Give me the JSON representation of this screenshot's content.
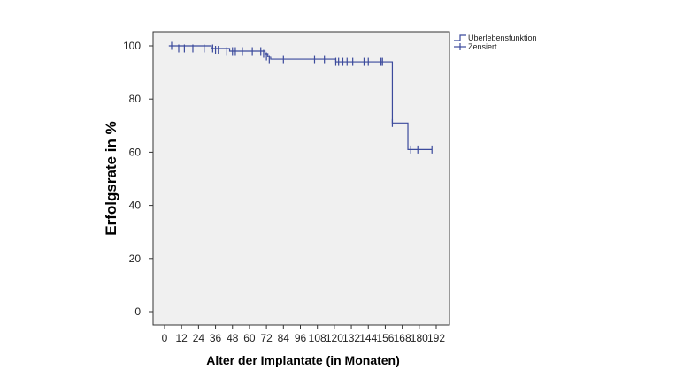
{
  "chart_data": {
    "type": "line",
    "subtype": "kaplan-meier",
    "title": "",
    "xlabel": "Alter der Implantate (in Monaten)",
    "ylabel": "Erfolgsrate in %",
    "xlim": [
      0,
      192
    ],
    "ylim": [
      0,
      100
    ],
    "xticks": [
      0,
      12,
      24,
      36,
      48,
      60,
      72,
      84,
      96,
      108,
      120,
      132,
      144,
      156,
      168,
      180,
      192
    ],
    "yticks": [
      0,
      20,
      40,
      60,
      80,
      100
    ],
    "grid": false,
    "background_color": "#f0f0f0",
    "line_color": "#3b4a9c",
    "legend_position": "top-right-outside",
    "series": [
      {
        "name": "Überlebensfunktion",
        "style": "step",
        "x": [
          3,
          33,
          46,
          69,
          71,
          73,
          75,
          121,
          156,
          161,
          172,
          189
        ],
        "y": [
          100,
          99,
          98,
          98,
          97,
          96,
          95,
          94,
          94,
          71,
          61,
          61
        ]
      },
      {
        "name": "Zensiert",
        "style": "censor-marks",
        "x": [
          5,
          10,
          14,
          20,
          28,
          34,
          36,
          38,
          44,
          48,
          50,
          55,
          62,
          68,
          70,
          72,
          74,
          84,
          106,
          113,
          121,
          123,
          126,
          129,
          133,
          141,
          144,
          153,
          154,
          161,
          174,
          179,
          189
        ],
        "y": [
          100,
          99,
          99,
          99,
          99,
          99,
          98.5,
          98.5,
          98,
          98,
          98,
          98,
          98,
          98,
          97,
          96,
          95,
          95,
          95,
          95,
          94,
          94,
          94,
          94,
          94,
          94,
          94,
          94,
          94,
          71,
          61,
          61,
          61
        ]
      }
    ]
  }
}
